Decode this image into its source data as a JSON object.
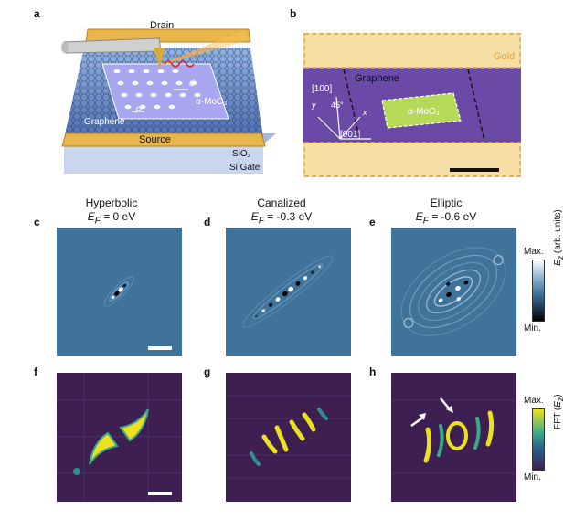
{
  "panel_labels": {
    "a": "a",
    "b": "b",
    "c": "c",
    "d": "d",
    "e": "e",
    "f": "f",
    "g": "g",
    "h": "h"
  },
  "panel_a": {
    "drain": "Drain",
    "source": "Source",
    "graphene": "Graphene",
    "moo3": "α-MoO₃",
    "sio2": "SiO₂",
    "gate": "Si Gate",
    "d": "d",
    "p": "P"
  },
  "panel_b": {
    "gold": "Gold",
    "graphene": "Graphene",
    "moo3": "α-MoO₃",
    "axis_100": "[100]",
    "axis_001": "[001]",
    "angle": "45°",
    "x": "x",
    "y": "y"
  },
  "columns": [
    {
      "regime": "Hyperbolic",
      "ef_label": "E",
      "ef_sub": "F",
      "ef_value": " = 0 eV"
    },
    {
      "regime": "Canalized",
      "ef_label": "E",
      "ef_sub": "F",
      "ef_value": " = -0.3 eV"
    },
    {
      "regime": "Elliptic",
      "ef_label": "E",
      "ef_sub": "F",
      "ef_value": " = -0.6 eV"
    }
  ],
  "colorbar_top": {
    "max": "Max.",
    "min": "Min.",
    "label": "E",
    "label_sub": "z",
    "label_rest": " (arb. units)"
  },
  "colorbar_bottom": {
    "max": "Max.",
    "min": "Min.",
    "label": "FFT (",
    "label_it": "E",
    "label_sub": "z",
    "label_close": ")"
  },
  "colors": {
    "field_bg": "#3f739a",
    "fft_bg": "#3d1f52",
    "gold": "#f5dfa4",
    "purple": "#6a4aa6",
    "moo3": "#b6da58",
    "dash": "#e8a33a"
  }
}
